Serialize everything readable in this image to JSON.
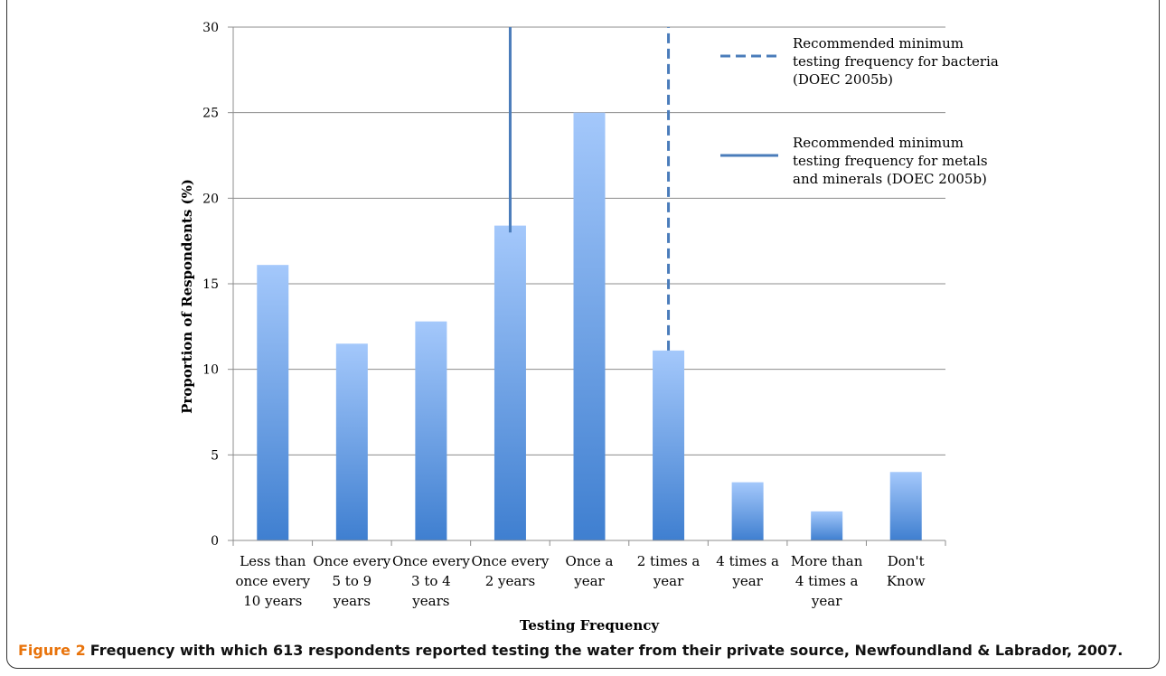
{
  "chart_data": {
    "type": "bar",
    "categories": [
      [
        "Less than",
        "once every",
        "10 years"
      ],
      [
        "Once every",
        "5 to 9",
        "years"
      ],
      [
        "Once every",
        "3 to 4",
        "years"
      ],
      [
        "Once every",
        "2 years"
      ],
      [
        "Once a",
        "year"
      ],
      [
        "2 times a",
        "year"
      ],
      [
        "4 times a",
        "year"
      ],
      [
        "More than",
        "4 times a",
        "year"
      ],
      [
        "Don't",
        "Know"
      ]
    ],
    "values": [
      16.1,
      11.5,
      12.8,
      18.4,
      25.0,
      11.1,
      3.4,
      1.7,
      4.0
    ],
    "xlabel": "Testing Frequency",
    "ylabel": "Proportion of Respondents (%)",
    "ylim": [
      0,
      30
    ],
    "yticks": [
      0,
      5,
      10,
      15,
      20,
      25,
      30
    ],
    "grid": true,
    "bar_color_top": "#a4c8fb",
    "bar_color_bottom": "#3f7fd0",
    "line_color": "#4a7cba",
    "reference_lines": [
      {
        "style": "dashed",
        "category_index": 5,
        "from_value": 11.1,
        "to_value": 30,
        "legend": [
          "Recommended minimum",
          "testing frequency for bacteria",
          "(DOEC 2005b)"
        ]
      },
      {
        "style": "solid",
        "category_index": 3,
        "from_value": 18,
        "to_value": 30,
        "legend": [
          "Recommended minimum",
          "testing frequency for metals",
          "and minerals (DOEC 2005b)"
        ]
      }
    ],
    "legend_position": "top-right"
  },
  "caption": {
    "label": "Figure 2",
    "text": "Frequency with which 613 respondents reported testing the water from their private source, Newfoundland & Labrador, 2007."
  }
}
